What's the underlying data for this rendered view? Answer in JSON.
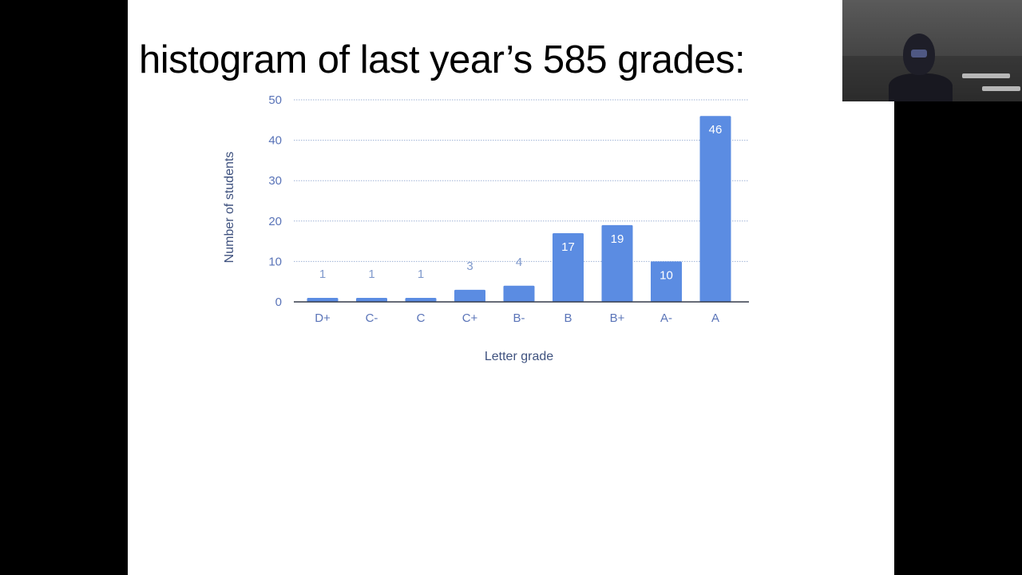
{
  "slide": {
    "title": "histogram of last year’s 585 grades:",
    "background": "#ffffff"
  },
  "colors": {
    "bar": "#5b8ce2",
    "grid": "#9fb2d6",
    "axis_text": "#5a74b8",
    "axis_title": "#3f527f",
    "label_inside": "#ffffff",
    "label_outside": "#7f99cc"
  },
  "chart_data": {
    "type": "bar",
    "categories": [
      "D+",
      "C-",
      "C",
      "C+",
      "B-",
      "B",
      "B+",
      "A-",
      "A"
    ],
    "values": [
      1,
      1,
      1,
      3,
      4,
      17,
      19,
      10,
      46
    ],
    "data_labels": [
      "1",
      "1",
      "1",
      "3",
      "4",
      "17",
      "19",
      "10",
      "46"
    ],
    "xlabel": "Letter grade",
    "ylabel": "Number of students",
    "ylim": [
      0,
      50
    ],
    "yticks": [
      0,
      10,
      20,
      30,
      40,
      50
    ],
    "ytick_labels": [
      "0",
      "10",
      "20",
      "30",
      "40",
      "50"
    ],
    "grid": true,
    "legend": "none"
  },
  "webcam": {
    "icon": "webcam-video-feed"
  }
}
